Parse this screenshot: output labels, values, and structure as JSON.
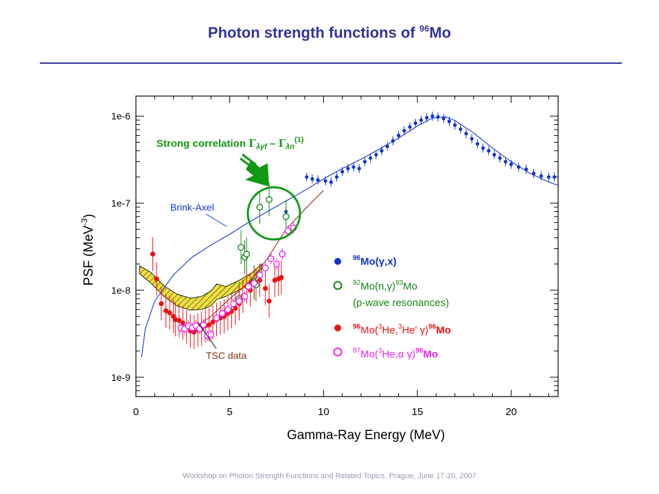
{
  "slide": {
    "title_main": "Photon strength functions of ",
    "title_sup": "96",
    "title_tail": "Mo",
    "footer": "Workshop on Photon Strength Functions and Related Topics, Prague, June 17-20, 2007"
  },
  "colors": {
    "title": "#33339a",
    "blue": "#1133cc",
    "green": "#118811",
    "red": "#ee1111",
    "magenta": "#ee22ee",
    "brown": "#883311",
    "hatch_fill": "#f0e040",
    "annotation": "#119911",
    "circle": "#119911"
  },
  "chart_data": {
    "type": "scatter",
    "xlabel": "Gamma-Ray Energy (MeV)",
    "ylabel_main": "PSF (MeV",
    "ylabel_sup": "-3",
    "ylabel_tail": ")",
    "xlim": [
      0,
      22.5
    ],
    "ylim": [
      6e-10,
      1.7e-06
    ],
    "yscale": "log",
    "x_ticks": [
      0,
      5,
      10,
      15,
      20
    ],
    "x_tick_labels": [
      "0",
      "5",
      "10",
      "15",
      "20"
    ],
    "y_ticks": [
      1e-09,
      1e-08,
      1e-07,
      1e-06
    ],
    "y_tick_labels": [
      "1e-9",
      "1e-8",
      "1e-7",
      "1e-6"
    ],
    "grid": false,
    "annotation": {
      "prefix": "Strong correlation ",
      "g1": "Γ",
      "sub1": "λγf",
      "dash": " – ",
      "g2": "Γ",
      "sub2": "λn",
      "sup": "(1)"
    },
    "curve_labels": {
      "brink_axel": "Brink-Axel",
      "tsc": "TSC data"
    },
    "legend_entries": [
      {
        "nuc": "96",
        "text": "Mo(γ,x)",
        "color": "#1133cc"
      },
      {
        "nuc": "92",
        "text": "Mo(n,γ)",
        "nuc2": "93",
        "text2": "Mo",
        "line2": "(p-wave resonances)",
        "color": "#118811"
      },
      {
        "nuc": "96",
        "text": "Mo(",
        "sup3a": "3",
        "He": "He,",
        "sup3b": "3",
        "He2": "He' γ)",
        "nuc2": "96",
        "text2": "Mo",
        "color": "#ee1111"
      },
      {
        "nuc": "97",
        "text": "Mo(",
        "sup3a": "3",
        "He": "He,α γ)",
        "nuc2": "96",
        "text2": "Mo",
        "color": "#ee22ee"
      }
    ],
    "series": [
      {
        "name": "96Mo(γ,x)",
        "marker": "filled-circle",
        "color": "#1133cc",
        "points": [
          [
            8.0,
            8e-08
          ],
          [
            9.1,
            2e-07
          ],
          [
            9.4,
            1.9e-07
          ],
          [
            9.7,
            1.85e-07
          ],
          [
            10.1,
            1.8e-07
          ],
          [
            10.4,
            1.75e-07
          ],
          [
            10.7,
            2e-07
          ],
          [
            11.0,
            2.3e-07
          ],
          [
            11.3,
            2.5e-07
          ],
          [
            11.6,
            2.6e-07
          ],
          [
            11.9,
            2.5e-07
          ],
          [
            12.2,
            3e-07
          ],
          [
            12.5,
            3.3e-07
          ],
          [
            12.8,
            3.6e-07
          ],
          [
            13.1,
            4e-07
          ],
          [
            13.4,
            4.5e-07
          ],
          [
            13.7,
            5.2e-07
          ],
          [
            14.0,
            6e-07
          ],
          [
            14.3,
            6.8e-07
          ],
          [
            14.6,
            7.5e-07
          ],
          [
            14.9,
            8.3e-07
          ],
          [
            15.2,
            9e-07
          ],
          [
            15.5,
            9.6e-07
          ],
          [
            15.8,
            1e-06
          ],
          [
            16.1,
            9.8e-07
          ],
          [
            16.4,
            9.4e-07
          ],
          [
            16.7,
            8.7e-07
          ],
          [
            17.0,
            7.9e-07
          ],
          [
            17.3,
            7.1e-07
          ],
          [
            17.6,
            6.3e-07
          ],
          [
            17.9,
            5.5e-07
          ],
          [
            18.2,
            4.8e-07
          ],
          [
            18.5,
            4.3e-07
          ],
          [
            18.8,
            4e-07
          ],
          [
            19.1,
            3.6e-07
          ],
          [
            19.4,
            3.3e-07
          ],
          [
            19.7,
            3e-07
          ],
          [
            20.0,
            2.8e-07
          ],
          [
            20.4,
            2.6e-07
          ],
          [
            20.8,
            2.45e-07
          ],
          [
            21.2,
            2.2e-07
          ],
          [
            21.6,
            2.05e-07
          ],
          [
            22.0,
            2e-07
          ],
          [
            22.3,
            2e-07
          ]
        ]
      },
      {
        "name": "92Mo(n,γ)93Mo",
        "marker": "open-circle",
        "color": "#118811",
        "points": [
          [
            5.5,
            8e-09
          ],
          [
            5.6,
            3.1e-08
          ],
          [
            5.8,
            2.4e-08
          ],
          [
            5.9,
            2.6e-08
          ],
          [
            6.3,
            1.25e-08
          ],
          [
            6.4,
            1.15e-08
          ],
          [
            6.6,
            9e-08
          ],
          [
            7.1,
            1.1e-07
          ],
          [
            8.0,
            7e-08
          ]
        ]
      },
      {
        "name": "96Mo(3He,3He'γ)96Mo",
        "marker": "filled-circle",
        "color": "#ee1111",
        "points": [
          [
            0.9,
            2.6e-08
          ],
          [
            1.1,
            1.35e-08
          ],
          [
            1.35,
            7e-09
          ],
          [
            1.6,
            5.8e-09
          ],
          [
            1.8,
            5.5e-09
          ],
          [
            2.0,
            5e-09
          ],
          [
            2.1,
            4.6e-09
          ],
          [
            2.3,
            4.5e-09
          ],
          [
            2.5,
            4.2e-09
          ],
          [
            2.7,
            3.8e-09
          ],
          [
            2.9,
            3.4e-09
          ],
          [
            3.1,
            3.3e-09
          ],
          [
            3.3,
            3.5e-09
          ],
          [
            3.5,
            3.6e-09
          ],
          [
            3.7,
            3.9e-09
          ],
          [
            3.9,
            4e-09
          ],
          [
            4.1,
            4.3e-09
          ],
          [
            4.3,
            4.6e-09
          ],
          [
            4.5,
            4.8e-09
          ],
          [
            4.7,
            5e-09
          ],
          [
            4.9,
            5.4e-09
          ],
          [
            5.1,
            5.7e-09
          ],
          [
            5.3,
            6.2e-09
          ],
          [
            5.5,
            7e-09
          ],
          [
            5.7,
            8.5e-09
          ],
          [
            5.9,
            1.1e-08
          ],
          [
            6.1,
            1e-08
          ],
          [
            6.3,
            1.2e-08
          ],
          [
            6.6,
            1.3e-08
          ],
          [
            6.9,
            1.05e-08
          ],
          [
            7.1,
            7.5e-09
          ],
          [
            7.4,
            1.3e-08
          ],
          [
            7.6,
            1.35e-08
          ],
          [
            7.75,
            1.4e-08
          ]
        ]
      },
      {
        "name": "97Mo(3He,αγ)96Mo",
        "marker": "open-circle",
        "color": "#ee22ee",
        "points": [
          [
            2.4,
            3.7e-09
          ],
          [
            2.6,
            3.6e-09
          ],
          [
            2.8,
            3.9e-09
          ],
          [
            3.0,
            3.7e-09
          ],
          [
            3.2,
            3.9e-09
          ],
          [
            3.4,
            3.6e-09
          ],
          [
            3.6,
            4e-09
          ],
          [
            3.8,
            3e-09
          ],
          [
            4.0,
            3.1e-09
          ],
          [
            4.3,
            4.8e-09
          ],
          [
            4.6,
            5.4e-09
          ],
          [
            4.9,
            6e-09
          ],
          [
            5.2,
            7e-09
          ],
          [
            5.5,
            7.5e-09
          ],
          [
            5.8,
            8.5e-09
          ],
          [
            6.0,
            1.1e-08
          ],
          [
            6.3,
            1.2e-08
          ],
          [
            6.6,
            1.5e-08
          ],
          [
            6.9,
            1.8e-08
          ],
          [
            7.2,
            2.3e-08
          ],
          [
            7.5,
            2e-08
          ],
          [
            7.8,
            2.6e-08
          ],
          [
            8.1,
            4.8e-08
          ],
          [
            8.4,
            5.2e-08
          ]
        ]
      },
      {
        "name": "Brink-Axel",
        "marker": "line",
        "color": "#1133cc",
        "points": [
          [
            0.3,
            1.7e-09
          ],
          [
            0.5,
            3.6e-09
          ],
          [
            1.0,
            7.5e-09
          ],
          [
            2.0,
            1.5e-08
          ],
          [
            3.0,
            2.4e-08
          ],
          [
            4.0,
            3.3e-08
          ],
          [
            5.0,
            4.4e-08
          ],
          [
            6.0,
            6e-08
          ],
          [
            7.0,
            8e-08
          ],
          [
            8.0,
            1.06e-07
          ],
          [
            9.0,
            1.4e-07
          ],
          [
            10.0,
            1.9e-07
          ],
          [
            11.0,
            2.5e-07
          ],
          [
            12.0,
            3.2e-07
          ],
          [
            13.0,
            4.2e-07
          ],
          [
            14.0,
            5.6e-07
          ],
          [
            15.0,
            7.7e-07
          ],
          [
            15.8,
            9.5e-07
          ],
          [
            16.5,
            9.8e-07
          ],
          [
            17.0,
            8.9e-07
          ],
          [
            18.0,
            6.4e-07
          ],
          [
            19.0,
            4.3e-07
          ],
          [
            20.0,
            3e-07
          ],
          [
            21.0,
            2.2e-07
          ],
          [
            22.0,
            1.75e-07
          ],
          [
            22.5,
            1.6e-07
          ]
        ]
      },
      {
        "name": "TSC data",
        "marker": "line",
        "color": "#883311",
        "points": [
          [
            2.8,
            3.4e-09
          ],
          [
            4.0,
            5e-09
          ],
          [
            5.0,
            8e-09
          ],
          [
            6.0,
            1.2e-08
          ],
          [
            7.0,
            2.3e-08
          ],
          [
            8.0,
            5e-08
          ],
          [
            9.0,
            8.5e-08
          ],
          [
            10.0,
            1.4e-07
          ]
        ]
      }
    ],
    "band": {
      "name": "TSC band",
      "upper": [
        [
          0.2,
          1.9e-08
        ],
        [
          0.8,
          1.6e-08
        ],
        [
          1.5,
          1.12e-08
        ],
        [
          2.2,
          9e-09
        ],
        [
          2.9,
          8.1e-09
        ],
        [
          3.5,
          8.5e-09
        ],
        [
          4.0,
          9.8e-09
        ],
        [
          4.3,
          1.18e-08
        ],
        [
          4.8,
          1.1e-08
        ],
        [
          5.5,
          1.3e-08
        ],
        [
          6.2,
          1.6e-08
        ],
        [
          6.7,
          2e-08
        ]
      ],
      "lower": [
        [
          0.2,
          1.55e-08
        ],
        [
          0.8,
          1.2e-08
        ],
        [
          1.5,
          8.5e-09
        ],
        [
          2.2,
          6.6e-09
        ],
        [
          2.9,
          5.9e-09
        ],
        [
          3.5,
          6e-09
        ],
        [
          4.0,
          6.6e-09
        ],
        [
          4.3,
          7.8e-09
        ],
        [
          4.8,
          8.5e-09
        ],
        [
          5.5,
          1e-08
        ],
        [
          6.2,
          1.25e-08
        ],
        [
          6.7,
          1.6e-08
        ]
      ]
    }
  }
}
